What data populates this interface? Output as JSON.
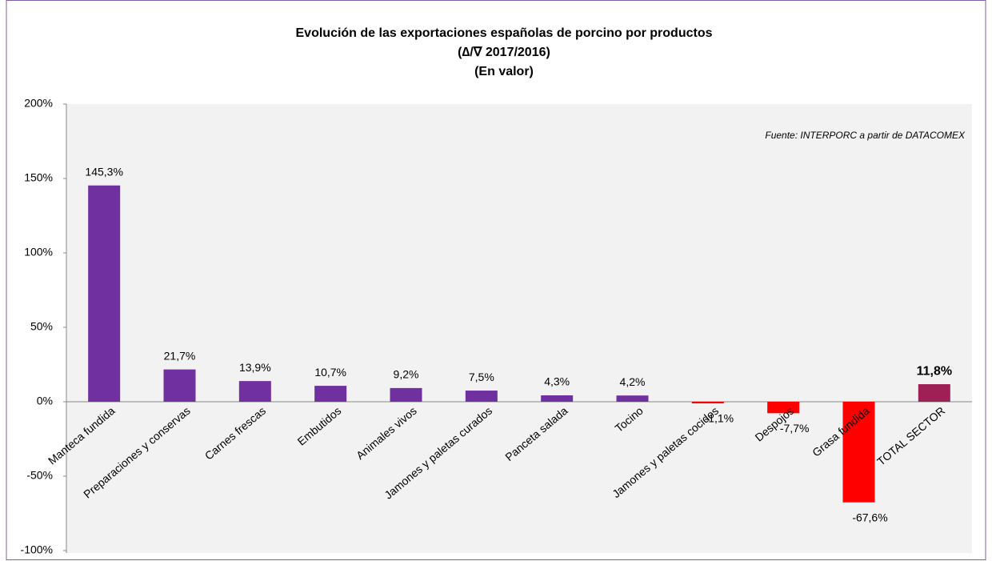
{
  "chart_data": {
    "type": "bar",
    "title": [
      "Evolución de las exportaciones españolas de porcino por productos",
      "(∆/∇ 2017/2016)",
      "(En valor)"
    ],
    "annotation": "Fuente: INTERPORC  a partir de DATACOMEX",
    "categories": [
      "Manteca fundida",
      "Preparaciones y conservas",
      "Carnes frescas",
      "Embutidos",
      "Animales vivos",
      "Jamones y paletas curados",
      "Panceta salada",
      "Tocino",
      "Jamones y paletas cocidos",
      "Despojos",
      "Grasa fundida",
      "TOTAL SECTOR"
    ],
    "values": [
      145.3,
      21.7,
      13.9,
      10.7,
      9.2,
      7.5,
      4.3,
      4.2,
      -1.1,
      -7.7,
      -67.6,
      11.8
    ],
    "value_labels": [
      "145,3%",
      "21,7%",
      "13,9%",
      "10,7%",
      "9,2%",
      "7,5%",
      "4,3%",
      "4,2%",
      "-1,1%",
      "-7,7%",
      "-67,6%",
      "11,8%"
    ],
    "colors": [
      "#7030a0",
      "#7030a0",
      "#7030a0",
      "#7030a0",
      "#7030a0",
      "#7030a0",
      "#7030a0",
      "#7030a0",
      "#ff0000",
      "#ff0000",
      "#ff0000",
      "#9e2054"
    ],
    "highlight_last": true,
    "ylim": [
      -100,
      200
    ],
    "yticks": [
      {
        "value": -100,
        "label": "-100%"
      },
      {
        "value": -50,
        "label": "-50%"
      },
      {
        "value": 0,
        "label": "0%"
      },
      {
        "value": 50,
        "label": "50%"
      },
      {
        "value": 100,
        "label": "100%"
      },
      {
        "value": 150,
        "label": "150%"
      },
      {
        "value": 200,
        "label": "200%"
      }
    ],
    "grid": false
  }
}
